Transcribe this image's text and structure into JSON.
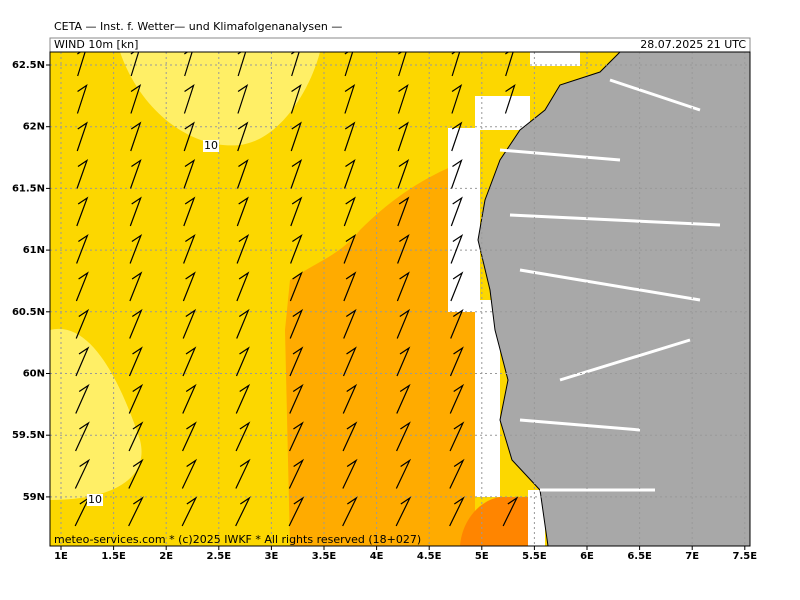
{
  "header": {
    "title": "CETA — Inst. f. Wetter— und Klimafolgenanalysen —",
    "product": "WIND 10m [kn]",
    "datetime": "28.07.2025 21 UTC"
  },
  "axes": {
    "x_ticks": [
      {
        "value": 1,
        "label": "1E"
      },
      {
        "value": 1.5,
        "label": "1.5E"
      },
      {
        "value": 2,
        "label": "2E"
      },
      {
        "value": 2.5,
        "label": "2.5E"
      },
      {
        "value": 3,
        "label": "3E"
      },
      {
        "value": 3.5,
        "label": "3.5E"
      },
      {
        "value": 4,
        "label": "4E"
      },
      {
        "value": 4.5,
        "label": "4.5E"
      },
      {
        "value": 5,
        "label": "5E"
      },
      {
        "value": 5.5,
        "label": "5.5E"
      },
      {
        "value": 6,
        "label": "6E"
      },
      {
        "value": 6.5,
        "label": "6.5E"
      },
      {
        "value": 7,
        "label": "7E"
      },
      {
        "value": 7.5,
        "label": "7.5E"
      }
    ],
    "y_ticks": [
      {
        "value": 62.5,
        "label": "62.5N"
      },
      {
        "value": 62,
        "label": "62N"
      },
      {
        "value": 61.5,
        "label": "61.5N"
      },
      {
        "value": 61,
        "label": "61N"
      },
      {
        "value": 60.5,
        "label": "60.5N"
      },
      {
        "value": 60,
        "label": "60N"
      },
      {
        "value": 59.5,
        "label": "59.5N"
      },
      {
        "value": 59,
        "label": "59N"
      }
    ]
  },
  "contour_labels": [
    "10",
    "10"
  ],
  "credit": "meteo-services.com * (c)2025 IWKF * All rights reserved (18+027)"
}
